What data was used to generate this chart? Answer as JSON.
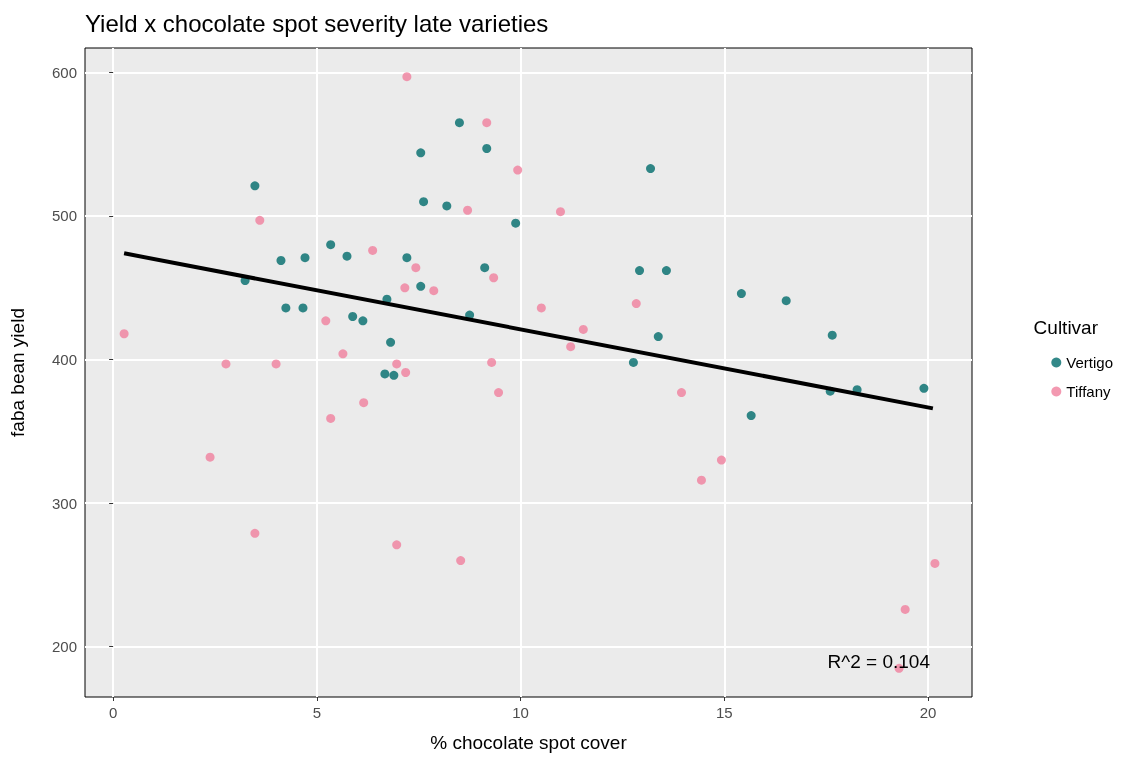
{
  "chart_data": {
    "type": "scatter",
    "title": "Yield x chocolate spot severity late varieties",
    "xlabel": "% chocolate spot cover",
    "ylabel": "faba bean yield",
    "legend_title": "Cultivar",
    "annotations": [
      "R^2 = 0.104"
    ],
    "series": [
      {
        "name": "Vertigo",
        "color": "#006b6b",
        "x": [
          3.48,
          3.24,
          4.12,
          4.71,
          4.24,
          4.66,
          5.34,
          5.74,
          5.88,
          6.13,
          6.72,
          6.81,
          6.67,
          6.89,
          7.21,
          7.55,
          7.55,
          7.62,
          8.19,
          8.5,
          9.17,
          9.12,
          8.75,
          9.88,
          13.19,
          12.92,
          13.58,
          13.38,
          12.77,
          15.42,
          16.52,
          17.65,
          15.66,
          17.6,
          18.26,
          19.9
        ],
        "values": [
          521,
          455,
          469,
          471,
          436,
          436,
          480,
          472,
          430,
          427,
          442,
          412,
          390,
          389,
          471,
          451,
          544,
          510,
          507,
          565,
          547,
          464,
          431,
          495,
          533,
          462,
          462,
          416,
          398,
          446,
          441,
          417,
          361,
          378,
          379,
          380
        ]
      },
      {
        "name": "Tiffany",
        "color": "#f07f9d",
        "x": [
          0.27,
          2.77,
          2.38,
          4.0,
          3.6,
          3.48,
          5.22,
          5.64,
          5.34,
          6.15,
          6.37,
          7.43,
          7.16,
          7.87,
          7.18,
          6.96,
          6.96,
          7.21,
          8.7,
          9.17,
          9.93,
          10.98,
          9.34,
          9.29,
          9.46,
          8.53,
          10.51,
          11.54,
          11.23,
          12.84,
          13.95,
          14.44,
          14.93,
          20.17,
          19.44,
          19.29
        ],
        "values": [
          418,
          397,
          332,
          397,
          497,
          279,
          427,
          404,
          359,
          370,
          476,
          464,
          450,
          448,
          391,
          397,
          271,
          597,
          504,
          565,
          532,
          503,
          457,
          398,
          377,
          260,
          436,
          421,
          409,
          439,
          377,
          316,
          330,
          258,
          226,
          185
        ]
      },
      {
        "type": "line",
        "marker": "none",
        "color": "#000000",
        "x": [
          0.27,
          20.12
        ],
        "values": [
          474,
          366
        ]
      }
    ],
    "xlim": [
      -0.69,
      21.08
    ],
    "ylim": [
      165,
      617
    ],
    "xticks": [
      0,
      5,
      10,
      15,
      20
    ],
    "yticks": [
      200,
      300,
      400,
      500,
      600
    ],
    "grid": true,
    "legend": "right",
    "marker": "circle"
  }
}
